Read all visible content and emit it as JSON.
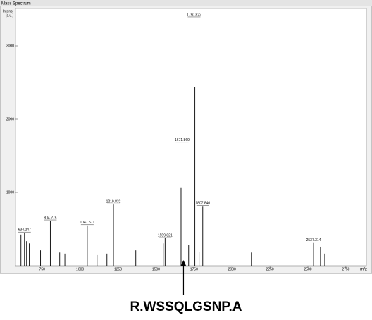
{
  "chart_data": {
    "type": "stem",
    "title": "Mass Spectrum",
    "y_label_lines": [
      "Intens.",
      "[a.u.]"
    ],
    "x_label": "m/z",
    "xlim": [
      575,
      2885
    ],
    "ylim": [
      0,
      3500
    ],
    "xticks": [
      750,
      1000,
      1250,
      1500,
      1750,
      2000,
      2250,
      2500,
      2750
    ],
    "yticks": [
      1000,
      2000,
      3000
    ],
    "color": "#000000",
    "labeled_peaks": {
      "x": [
        634.247,
        804.275,
        1047.571,
        1219.832,
        1559.821,
        1671.869,
        1750.822,
        1807.84,
        2537.314
      ],
      "values": [
        450,
        615,
        550,
        835,
        375,
        1675,
        3385,
        815,
        310
      ],
      "labels": [
        "634.247",
        "804.275",
        "1047.571",
        "1219.832",
        "1559.821",
        "1671.869",
        "1750.822",
        "1807.840",
        "2537.314"
      ]
    },
    "other_peaks": {
      "x": [
        611,
        648,
        666,
        740,
        866,
        900,
        1112,
        1177,
        1367,
        1548,
        1665,
        1715,
        1756,
        1784,
        2128,
        2583,
        2611
      ],
      "values": [
        425,
        335,
        305,
        210,
        180,
        165,
        145,
        165,
        210,
        305,
        1060,
        280,
        2440,
        190,
        180,
        260,
        165
      ]
    },
    "annotation": "R.WSSQLGSNP.A"
  }
}
